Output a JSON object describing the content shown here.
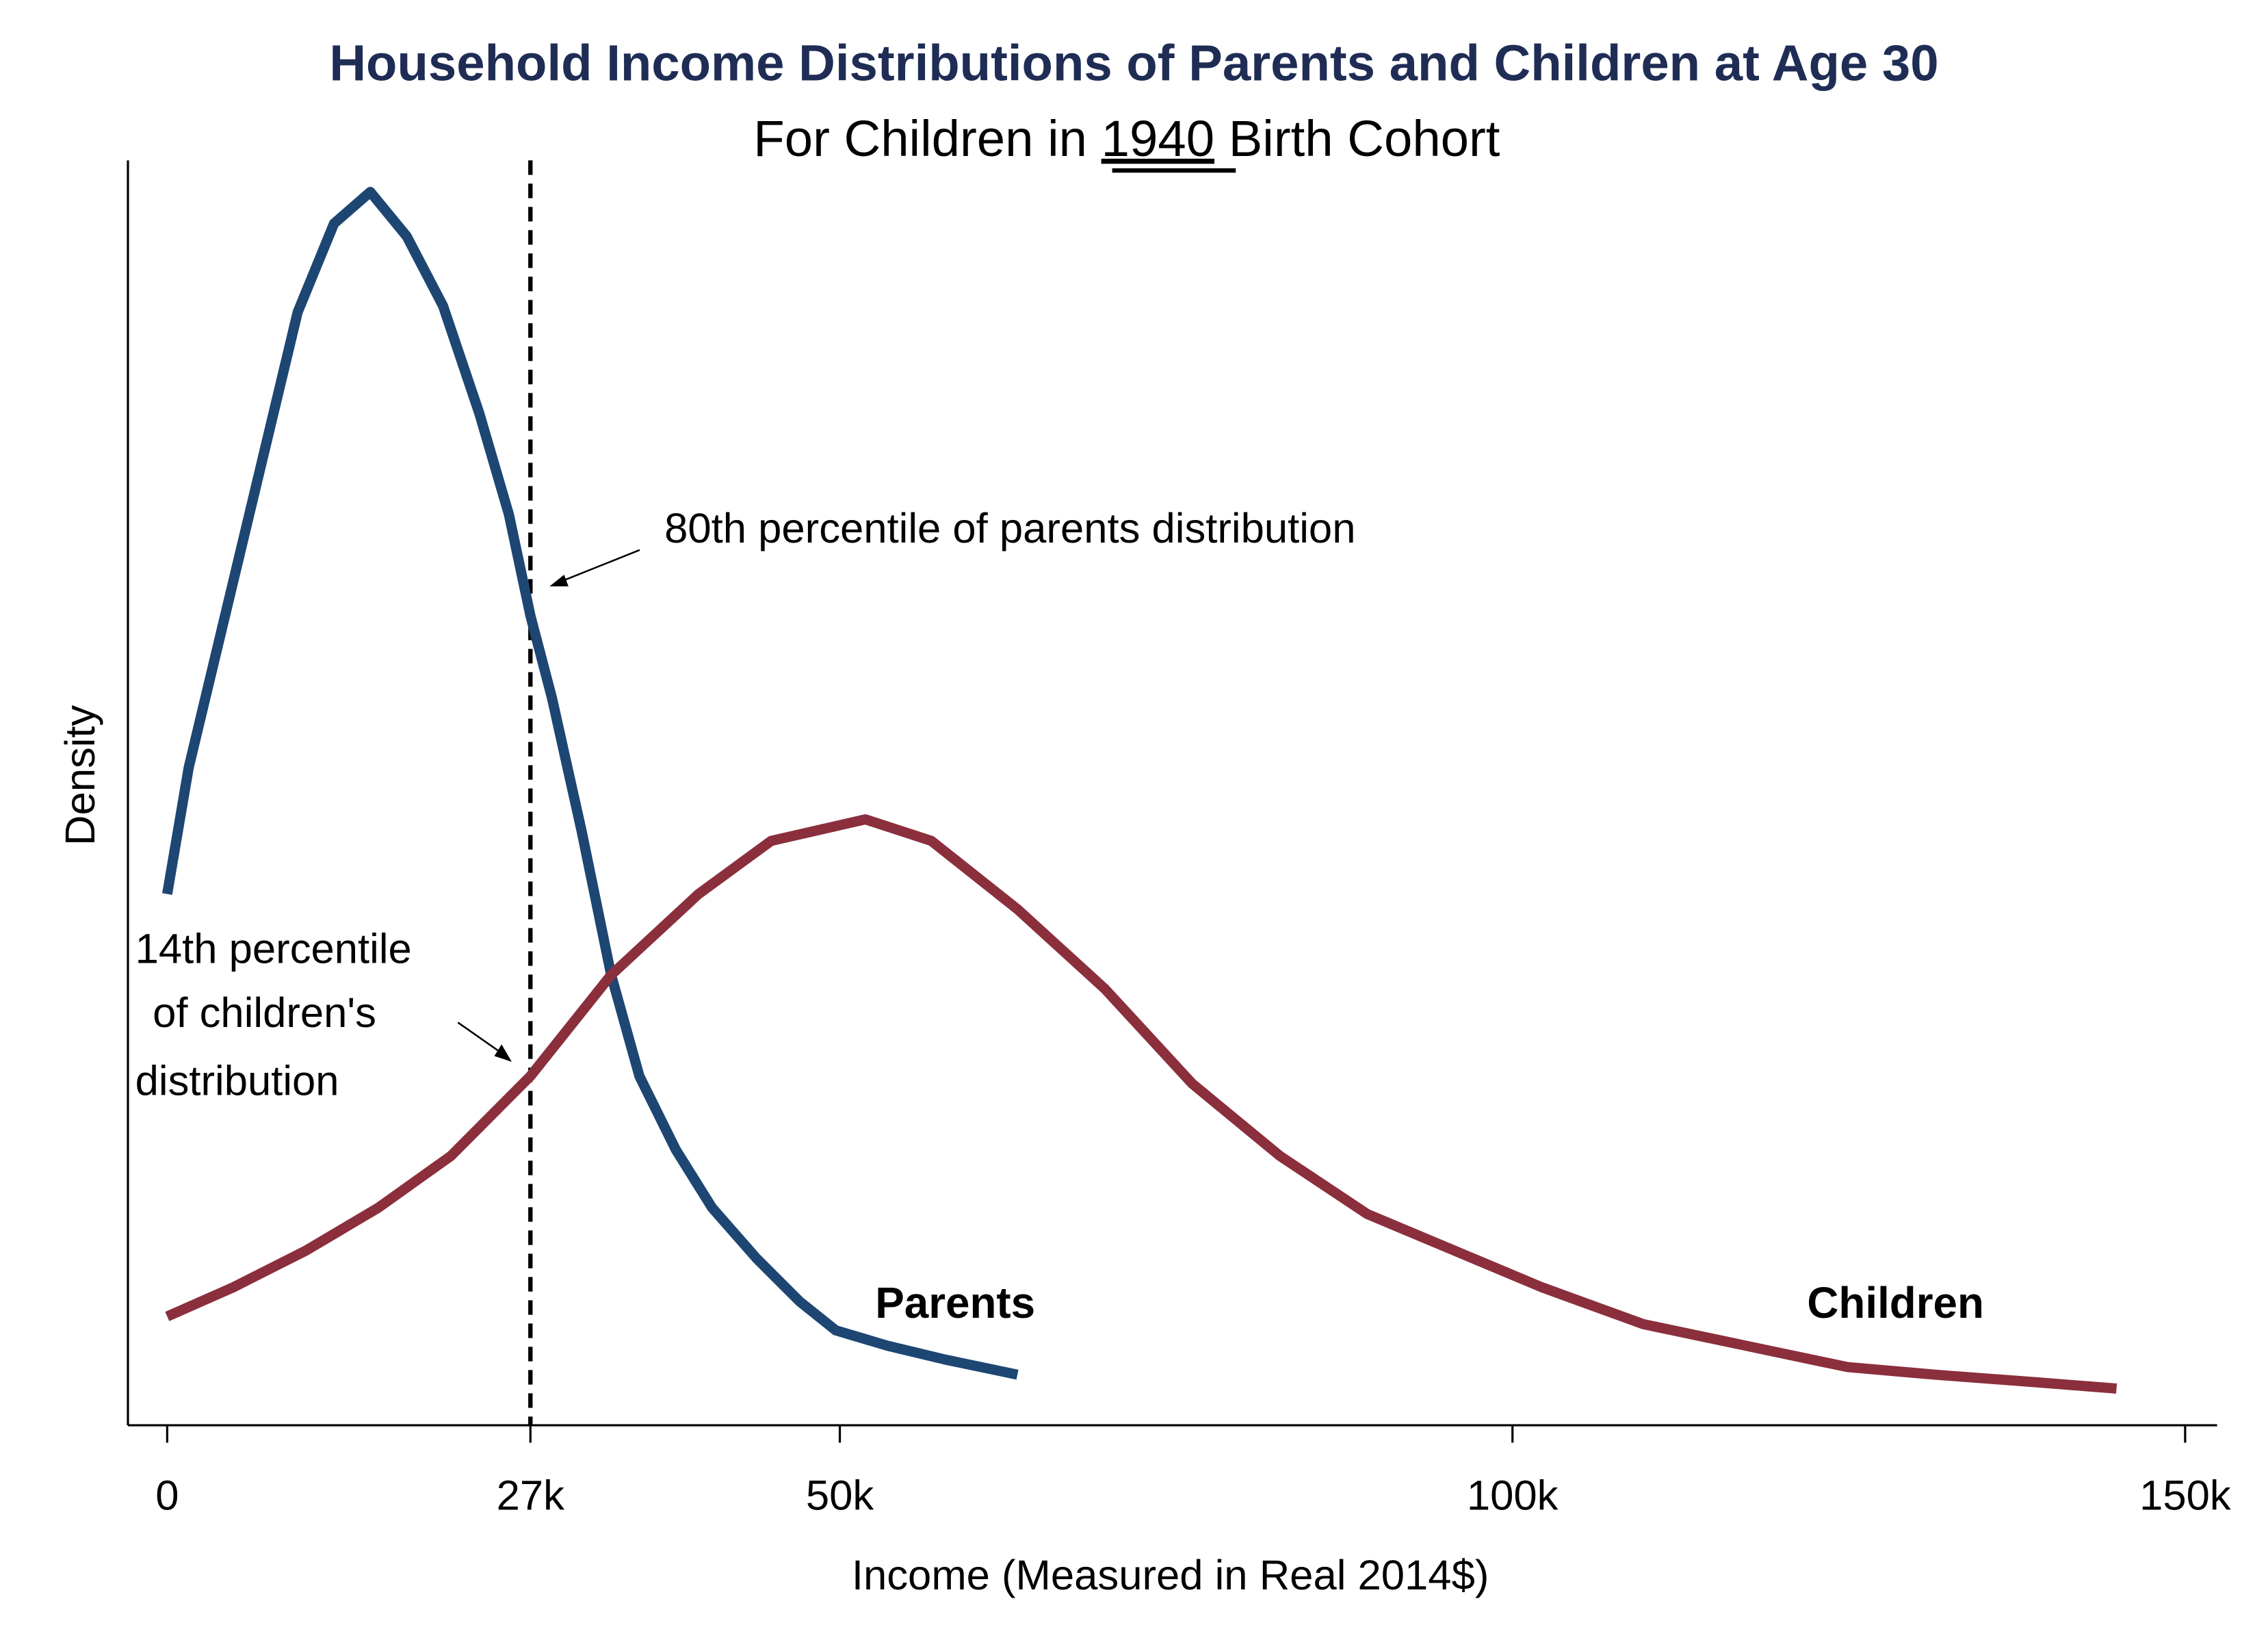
{
  "chart_data": {
    "type": "line",
    "title": "Household Income Distributions of Parents and Children at Age 30",
    "subtitle": {
      "prefix": "For Children in ",
      "year": "1940",
      "suffix": " Birth Cohort"
    },
    "xlabel": "Income (Measured in Real 2014$)",
    "ylabel": "Density",
    "xlim": [
      0,
      150
    ],
    "ylim": [
      0,
      1
    ],
    "x_ticks": [
      {
        "value": 0,
        "label": "0"
      },
      {
        "value": 27,
        "label": "27k"
      },
      {
        "value": 50,
        "label": "50k"
      },
      {
        "value": 100,
        "label": "100k"
      },
      {
        "value": 150,
        "label": "150k"
      }
    ],
    "grid": false,
    "reference_line": {
      "x": 27,
      "style": "dashed"
    },
    "annotations": {
      "parents_80th": "80th percentile of parents distribution",
      "children_14th": [
        "14th percentile",
        "of children's",
        "distribution"
      ]
    },
    "series": [
      {
        "name": "Parents",
        "color": "#1d4673",
        "x": [
          0,
          1.6,
          4.3,
          7.0,
          9.7,
          12.4,
          15.1,
          17.8,
          20.5,
          23.2,
          25.4,
          27.0,
          28.6,
          30.8,
          33.0,
          35.1,
          37.8,
          40.5,
          43.8,
          47.0,
          49.7,
          53.5,
          57.8,
          63.2
        ],
        "y": [
          0.42,
          0.52,
          0.64,
          0.76,
          0.88,
          0.95,
          0.975,
          0.94,
          0.885,
          0.8,
          0.72,
          0.64,
          0.575,
          0.47,
          0.356,
          0.276,
          0.218,
          0.172,
          0.132,
          0.098,
          0.075,
          0.063,
          0.052,
          0.04
        ]
      },
      {
        "name": "Children",
        "color": "#8b2f3c",
        "x": [
          0,
          4.9,
          10.3,
          15.7,
          21.1,
          27.0,
          33.0,
          39.5,
          44.9,
          51.9,
          56.8,
          63.2,
          69.7,
          76.2,
          82.7,
          89.2,
          95.7,
          102.2,
          109.7,
          117.3,
          124.9,
          131.4,
          138.9,
          144.9
        ],
        "y": [
          0.086,
          0.109,
          0.138,
          0.172,
          0.213,
          0.276,
          0.356,
          0.42,
          0.462,
          0.479,
          0.462,
          0.408,
          0.345,
          0.27,
          0.213,
          0.167,
          0.138,
          0.109,
          0.08,
          0.063,
          0.046,
          0.04,
          0.034,
          0.029
        ]
      }
    ]
  }
}
